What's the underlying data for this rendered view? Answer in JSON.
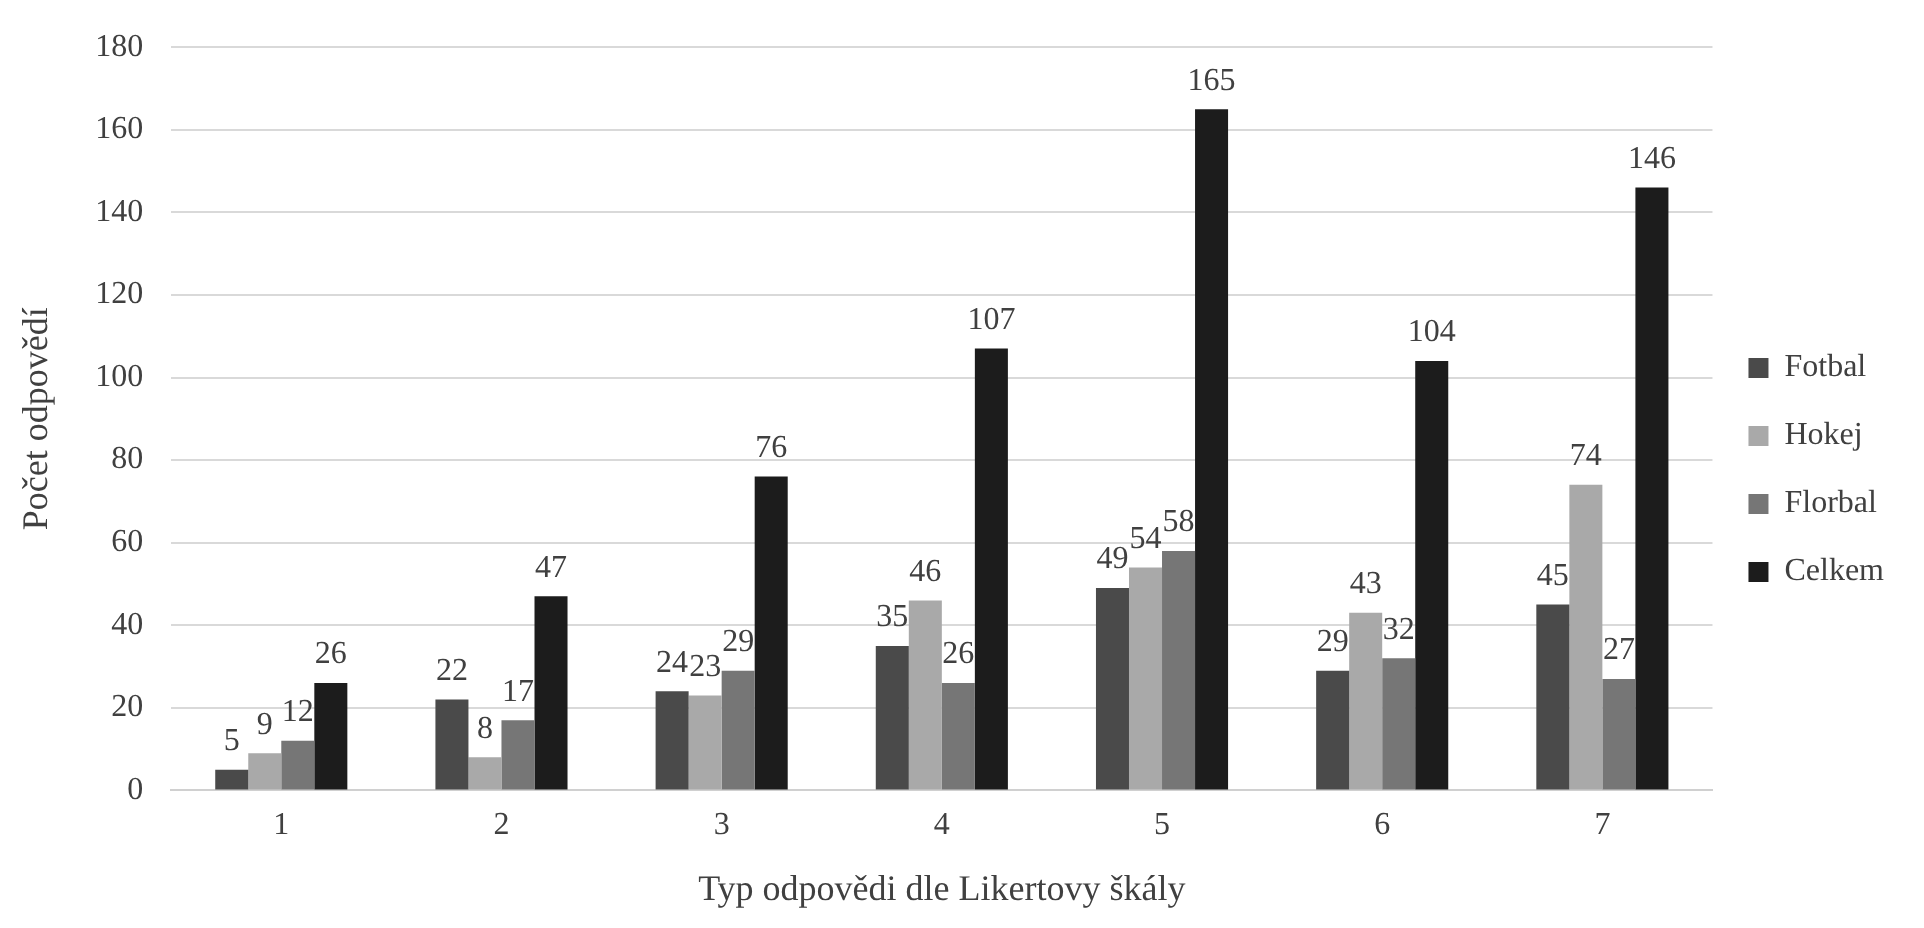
{
  "chart_data": {
    "type": "bar",
    "xlabel": "Typ odpovědi dle Likertovy škály",
    "ylabel": "Počet odpovědí",
    "categories": [
      "1",
      "2",
      "3",
      "4",
      "5",
      "6",
      "7"
    ],
    "series": [
      {
        "name": "Fotbal",
        "color": "#4a4a4a",
        "values": [
          5,
          22,
          24,
          35,
          49,
          29,
          45
        ]
      },
      {
        "name": "Hokej",
        "color": "#a9a9a9",
        "values": [
          9,
          8,
          23,
          46,
          54,
          43,
          74
        ]
      },
      {
        "name": "Florbal",
        "color": "#767676",
        "values": [
          12,
          17,
          29,
          26,
          58,
          32,
          27
        ]
      },
      {
        "name": "Celkem",
        "color": "#1c1c1c",
        "values": [
          26,
          47,
          76,
          107,
          165,
          104,
          146
        ]
      }
    ],
    "ylim": [
      0,
      180
    ],
    "yticks": [
      0,
      20,
      40,
      60,
      80,
      100,
      120,
      140,
      160,
      180
    ],
    "grid": "y",
    "legend": "right",
    "data_labels": true
  }
}
